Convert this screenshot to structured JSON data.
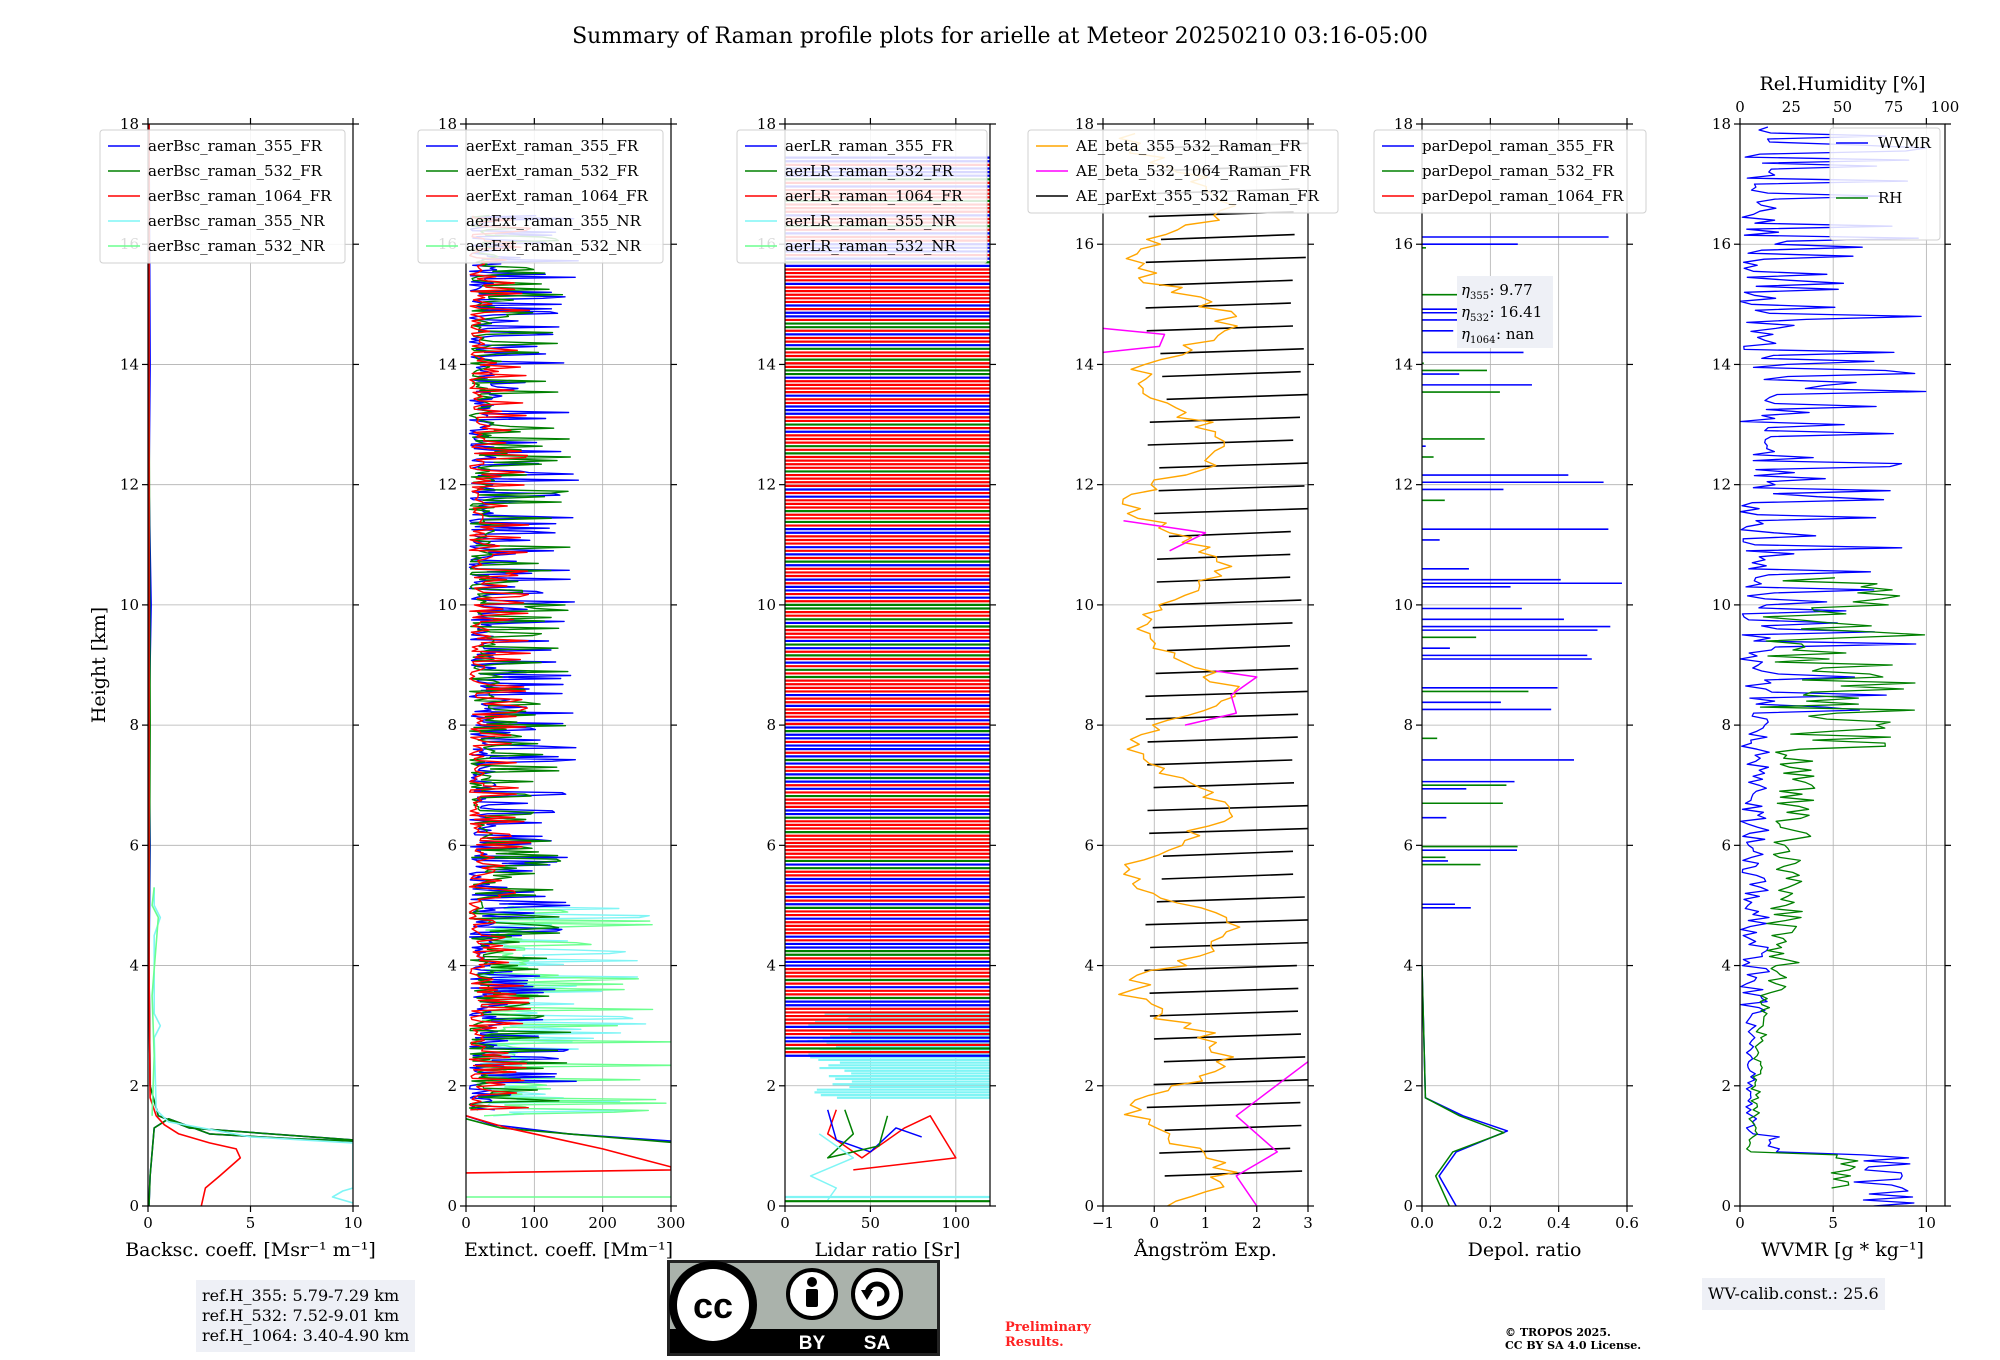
{
  "title": "Summary of Raman profile plots for arielle at Meteor 20250210 03:16-05:00",
  "colors": {
    "blue": "#0000ff",
    "green": "#008000",
    "red": "#ff0000",
    "cyan": "#7ff5f5",
    "lightgreen": "#6bff8f",
    "orange": "#ffa500",
    "magenta": "#ff00ff",
    "black": "#000000",
    "grid": "#b0b0b0"
  },
  "chart_data": [
    {
      "type": "line",
      "id": "bsc",
      "xlabel": "Backsc. coeff. [Msr⁻¹ m⁻¹]",
      "ylabel": "Height [km]",
      "xlim": [
        0,
        10
      ],
      "ylim": [
        0,
        18
      ],
      "xticks": [
        0,
        5,
        10
      ],
      "xticklabels": [
        "0",
        "5",
        "10"
      ],
      "yticks": [
        0,
        2,
        4,
        6,
        8,
        10,
        12,
        14,
        16,
        18
      ],
      "yticklabels": [
        "0",
        "2",
        "4",
        "6",
        "8",
        "10",
        "12",
        "14",
        "16",
        "18"
      ],
      "series": [
        {
          "name": "aerBsc_raman_355_FR",
          "color": "blue",
          "x": [
            0.05,
            0.1,
            0.3,
            1.0,
            3.0,
            7.0,
            10,
            10,
            2,
            0.5,
            0.1,
            0.05,
            0.1,
            0.05,
            0.15,
            0.05,
            0.1,
            0.05
          ],
          "y": [
            0,
            0.5,
            1.3,
            1.45,
            1.2,
            1.12,
            1.08,
            1.1,
            1.3,
            1.5,
            2.0,
            4,
            6,
            8,
            10,
            12,
            14,
            18
          ]
        },
        {
          "name": "aerBsc_raman_532_FR",
          "color": "green",
          "x": [
            0.05,
            0.1,
            0.3,
            1.0,
            3.0,
            7.0,
            10,
            10,
            2,
            0.5,
            0.1,
            0.05,
            0.1,
            0.05,
            0.05
          ],
          "y": [
            0,
            0.5,
            1.3,
            1.45,
            1.2,
            1.12,
            1.08,
            1.1,
            1.3,
            1.5,
            2.0,
            4,
            8,
            14,
            18
          ]
        },
        {
          "name": "aerBsc_raman_1064_FR",
          "color": "red",
          "x": [
            2.6,
            2.8,
            3.5,
            4.5,
            4.3,
            3.0,
            1.5,
            0.8,
            0.4,
            0.1,
            0.05,
            0.05
          ],
          "y": [
            0,
            0.3,
            0.5,
            0.8,
            0.95,
            1.05,
            1.2,
            1.35,
            1.5,
            1.8,
            4,
            18
          ]
        },
        {
          "name": "aerBsc_raman_355_NR",
          "color": "cyan",
          "x": [
            10,
            9.0,
            9.5,
            10,
            10,
            5,
            1.0,
            0.4,
            0.3,
            0.6,
            0.3,
            0.3,
            0.6,
            0.3,
            0.3
          ],
          "y": [
            0.05,
            0.15,
            0.25,
            0.3,
            1.05,
            1.15,
            1.4,
            1.6,
            2.8,
            3.0,
            3.2,
            4.5,
            4.8,
            5.0,
            5.3
          ]
        },
        {
          "name": "aerBsc_raman_532_NR",
          "color": "lightgreen",
          "x": [
            0.2,
            0.3,
            0.2,
            0.5,
            0.2,
            0.3
          ],
          "y": [
            1.5,
            2.5,
            3.5,
            4.8,
            5.0,
            5.3
          ]
        }
      ],
      "legend": "top-left"
    },
    {
      "type": "line",
      "id": "ext",
      "xlabel": "Extinct. coeff. [Mm⁻¹]",
      "xlim": [
        0,
        300
      ],
      "ylim": [
        0,
        18
      ],
      "xticks": [
        0,
        100,
        200,
        300
      ],
      "xticklabels": [
        "0",
        "100",
        "200",
        "300"
      ],
      "yticks": [
        0,
        2,
        4,
        6,
        8,
        10,
        12,
        14,
        16,
        18
      ],
      "yticklabels": [
        "0",
        "2",
        "4",
        "6",
        "8",
        "10",
        "12",
        "14",
        "16",
        "18"
      ],
      "series": [
        {
          "name": "aerExt_raman_355_FR",
          "color": "blue"
        },
        {
          "name": "aerExt_raman_532_FR",
          "color": "green"
        },
        {
          "name": "aerExt_raman_1064_FR",
          "color": "red"
        },
        {
          "name": "aerExt_raman_355_NR",
          "color": "cyan"
        },
        {
          "name": "aerExt_raman_532_NR",
          "color": "lightgreen"
        }
      ],
      "legend": "top-left"
    },
    {
      "type": "line",
      "id": "lr",
      "xlabel": "Lidar ratio [Sr]",
      "xlim": [
        0,
        120
      ],
      "ylim": [
        0,
        18
      ],
      "xticks": [
        0,
        50,
        100
      ],
      "xticklabels": [
        "0",
        "50",
        "100"
      ],
      "yticks": [
        0,
        2,
        4,
        6,
        8,
        10,
        12,
        14,
        16,
        18
      ],
      "yticklabels": [
        "0",
        "2",
        "4",
        "6",
        "8",
        "10",
        "12",
        "14",
        "16",
        "18"
      ],
      "series": [
        {
          "name": "aerLR_raman_355_FR",
          "color": "blue"
        },
        {
          "name": "aerLR_raman_532_FR",
          "color": "green"
        },
        {
          "name": "aerLR_raman_1064_FR",
          "color": "red"
        },
        {
          "name": "aerLR_raman_355_NR",
          "color": "cyan"
        },
        {
          "name": "aerLR_raman_532_NR",
          "color": "lightgreen"
        }
      ],
      "legend": "top-left"
    },
    {
      "type": "line",
      "id": "ae",
      "xlabel": "Ångström Exp.",
      "xlim": [
        -1,
        3
      ],
      "ylim": [
        0,
        18
      ],
      "xticks": [
        -1,
        0,
        1,
        2,
        3
      ],
      "xticklabels": [
        "−1",
        "0",
        "1",
        "2",
        "3"
      ],
      "yticks": [
        0,
        2,
        4,
        6,
        8,
        10,
        12,
        14,
        16,
        18
      ],
      "yticklabels": [
        "0",
        "2",
        "4",
        "6",
        "8",
        "10",
        "12",
        "14",
        "16",
        "18"
      ],
      "series": [
        {
          "name": "AE_beta_355_532_Raman_FR",
          "color": "orange"
        },
        {
          "name": "AE_beta_532_1064_Raman_FR",
          "color": "magenta"
        },
        {
          "name": "AE_parExt_355_532_Raman_FR",
          "color": "black"
        }
      ],
      "legend": "top-left"
    },
    {
      "type": "line",
      "id": "depol",
      "xlabel": "Depol. ratio",
      "xlim": [
        0,
        0.6
      ],
      "ylim": [
        0,
        18
      ],
      "xticks": [
        0,
        0.2,
        0.4,
        0.6
      ],
      "xticklabels": [
        "0.0",
        "0.2",
        "0.4",
        "0.6"
      ],
      "yticks": [
        0,
        2,
        4,
        6,
        8,
        10,
        12,
        14,
        16,
        18
      ],
      "yticklabels": [
        "0",
        "2",
        "4",
        "6",
        "8",
        "10",
        "12",
        "14",
        "16",
        "18"
      ],
      "series": [
        {
          "name": "parDepol_raman_355_FR",
          "color": "blue"
        },
        {
          "name": "parDepol_raman_532_FR",
          "color": "green"
        },
        {
          "name": "parDepol_raman_1064_FR",
          "color": "red"
        }
      ],
      "legend": "top-left",
      "annotation": {
        "eta355_label": "η",
        "lines": [
          ": 9.77",
          ": 16.41",
          ": nan"
        ],
        "subs": [
          "355",
          "532",
          "1064"
        ]
      }
    },
    {
      "type": "line",
      "id": "wv",
      "xlabel": "WVMR [g * kg⁻¹]",
      "xlim": [
        0,
        11
      ],
      "ylim": [
        0,
        18
      ],
      "xticks": [
        0,
        5,
        10
      ],
      "xticklabels": [
        "0",
        "5",
        "10"
      ],
      "top_axis": {
        "label": "Rel.Humidity [%]",
        "xlim": [
          0,
          100
        ],
        "xticks": [
          0,
          25,
          50,
          75,
          100
        ],
        "xticklabels": [
          "0",
          "25",
          "50",
          "75",
          "100"
        ]
      },
      "yticks": [
        0,
        2,
        4,
        6,
        8,
        10,
        12,
        14,
        16,
        18
      ],
      "yticklabels": [
        "0",
        "2",
        "4",
        "6",
        "8",
        "10",
        "12",
        "14",
        "16",
        "18"
      ],
      "series": [
        {
          "name": "WVMR",
          "color": "blue"
        },
        {
          "name": "RH",
          "color": "green"
        }
      ],
      "legend": "top-right"
    }
  ],
  "refh": [
    "ref.H_355: 5.79-7.29 km",
    "ref.H_532: 7.52-9.01 km",
    "ref.H_1064: 3.40-4.90 km"
  ],
  "wvcalib": "WV-calib.const.: 25.6",
  "badge": {
    "cc": "cc",
    "by": "BY",
    "sa": "SA"
  },
  "prelim": [
    "Preliminary",
    "Results."
  ],
  "copyright": [
    "© TROPOS 2025.",
    "CC BY SA 4.0 License."
  ]
}
